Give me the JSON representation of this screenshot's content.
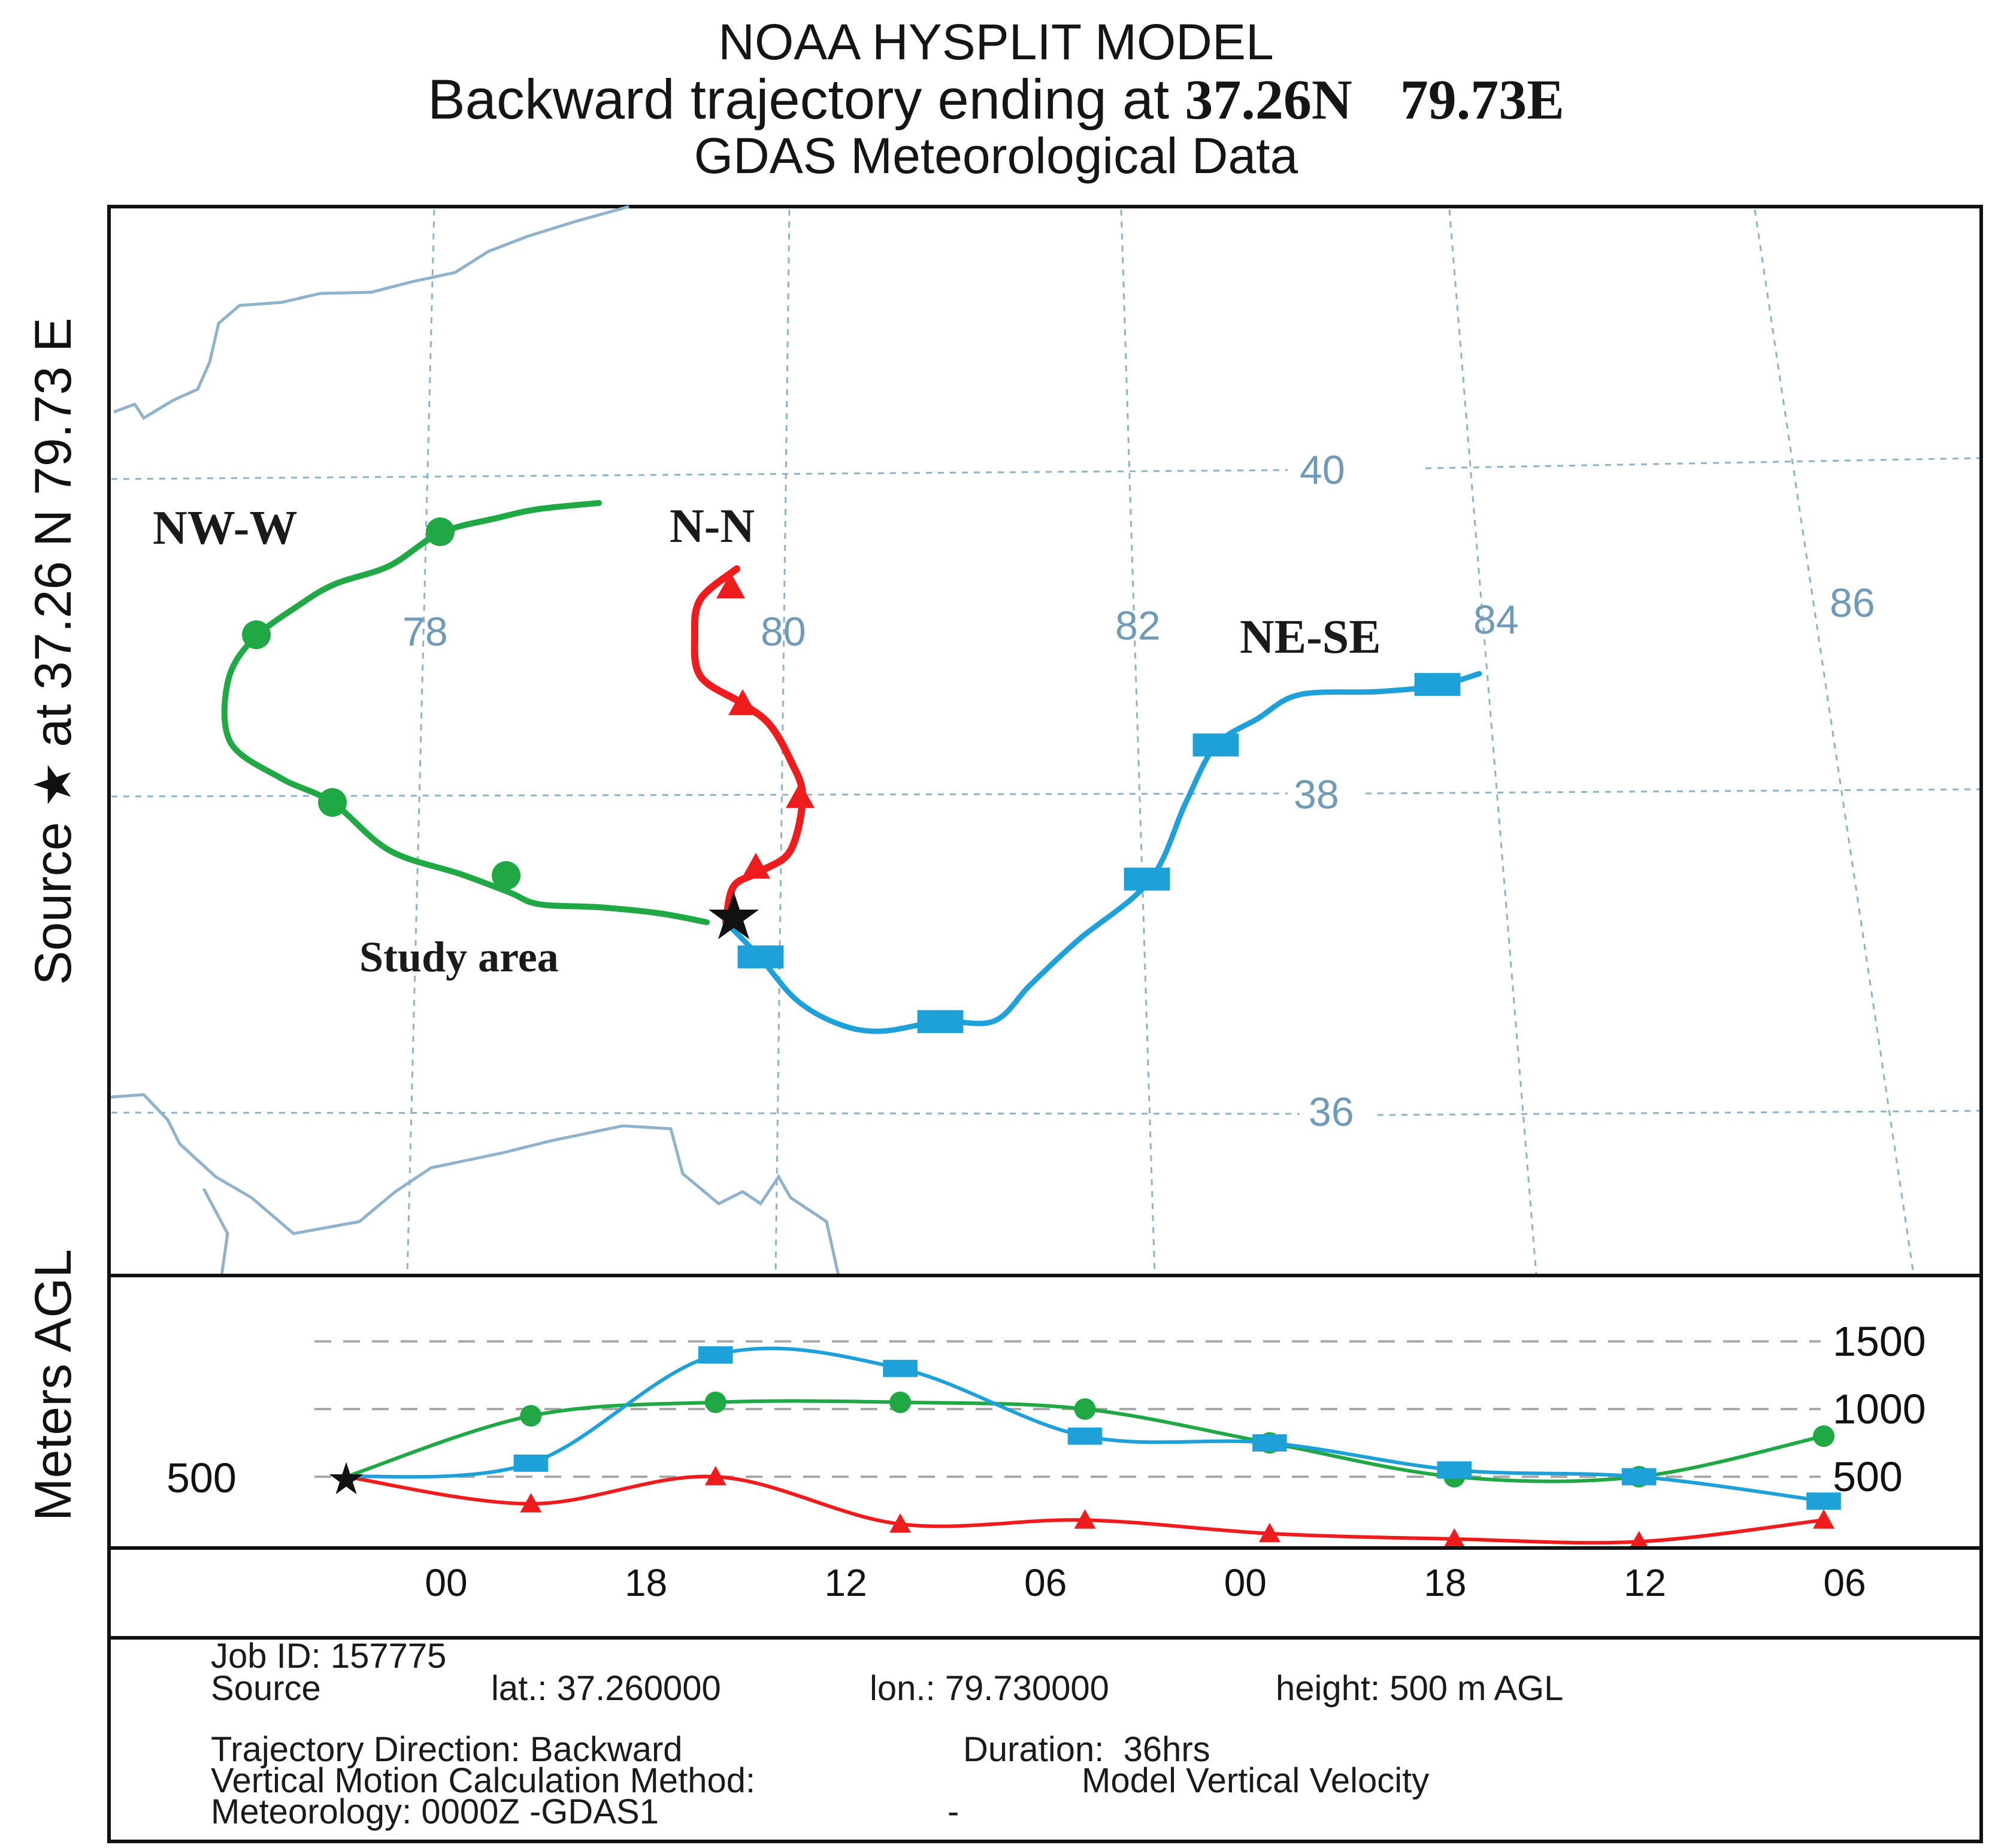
{
  "title": {
    "line1": "NOAA HYSPLIT MODEL",
    "line2_prefix": "Backward trajectory ending at ",
    "lat": "37.26N",
    "lon": "79.73E",
    "line3": "GDAS Meteorological Data"
  },
  "side_label": "Source ★ at 37.26 N 79.73 E",
  "meters_label": "Meters AGL",
  "source_height_label": "500",
  "grid": {
    "longitude_labels": [
      "78",
      "80",
      "82",
      "84",
      "86"
    ],
    "latitude_labels": [
      "40",
      "38",
      "36"
    ]
  },
  "legend_labels": {
    "nw_w": "NW-W",
    "n_n": "N-N",
    "ne_se": "NE-SE",
    "study_area": "Study area"
  },
  "colors": {
    "nw_w": "#1fa843",
    "n_n": "#ee1c1c",
    "ne_se": "#1ea0d8",
    "grid": "#8ab4cc",
    "coast": "#8fb3cc",
    "tick_text": "#6f9ab8"
  },
  "height_panel": {
    "y_ticks": [
      "1500",
      "1000",
      "500"
    ],
    "x_ticks": [
      "00",
      "18",
      "12",
      "06",
      "00",
      "18",
      "12",
      "06"
    ]
  },
  "info": {
    "job_id": "Job ID: 157775",
    "source": "Source",
    "lat": "lat.: 37.260000",
    "lon": "lon.: 79.730000",
    "height": "height: 500 m AGL",
    "direction": "Trajectory Direction: Backward",
    "duration": "Duration:  36hrs",
    "vertical": "Vertical Motion Calculation Method:",
    "vertical_value": "Model Vertical Velocity",
    "meteorology": "Meteorology: 0000Z -GDAS1",
    "meteorology_tail": "-"
  },
  "chart_data": {
    "type": "line",
    "title": "NOAA HYSPLIT MODEL",
    "xlabel": "",
    "ylabel": "Meters AGL",
    "ylim": [
      0,
      1500
    ],
    "x_tick_labels": [
      "00",
      "18",
      "12",
      "06",
      "00",
      "18",
      "12",
      "06"
    ],
    "series": [
      {
        "name": "NW-W",
        "color": "#1fa843",
        "values": [
          500,
          950,
          1050,
          1050,
          1000,
          750,
          500,
          500,
          800
        ]
      },
      {
        "name": "N-N",
        "color": "#ee1c1c",
        "values": [
          500,
          300,
          500,
          150,
          180,
          80,
          40,
          20,
          180
        ]
      },
      {
        "name": "NE-SE",
        "color": "#1ea0d8",
        "values": [
          500,
          600,
          1400,
          1300,
          800,
          750,
          550,
          500,
          320
        ]
      }
    ],
    "grid": true
  }
}
